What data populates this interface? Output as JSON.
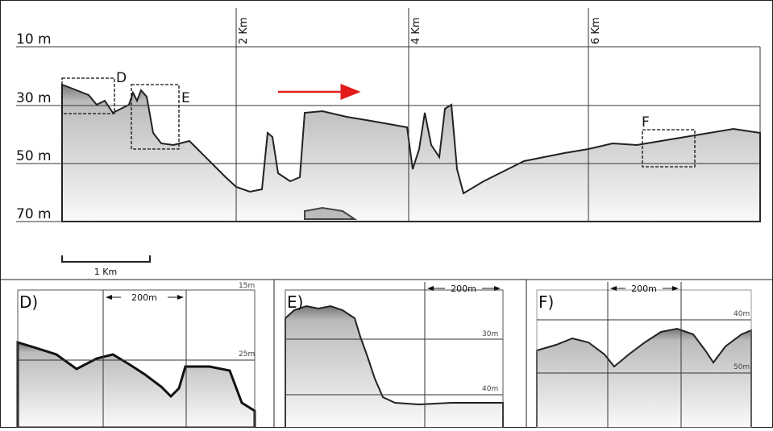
{
  "depth_labels": [
    "10 m",
    "30 m",
    "50 m",
    "70 m"
  ],
  "distance_labels": [
    "2 Km",
    "4 Km",
    "6 Km"
  ],
  "box_labels": [
    "D",
    "E",
    "F"
  ],
  "scale_bar": "1 Km",
  "panels": [
    {
      "label": "D)",
      "width_label": "200m",
      "depth_labels": [
        "15m",
        "25m"
      ]
    },
    {
      "label": "E)",
      "width_label": "200m",
      "depth_labels": [
        "30m",
        "40m"
      ]
    },
    {
      "label": "F)",
      "width_label": "200m",
      "depth_labels": [
        "40m",
        "50m"
      ]
    }
  ]
}
